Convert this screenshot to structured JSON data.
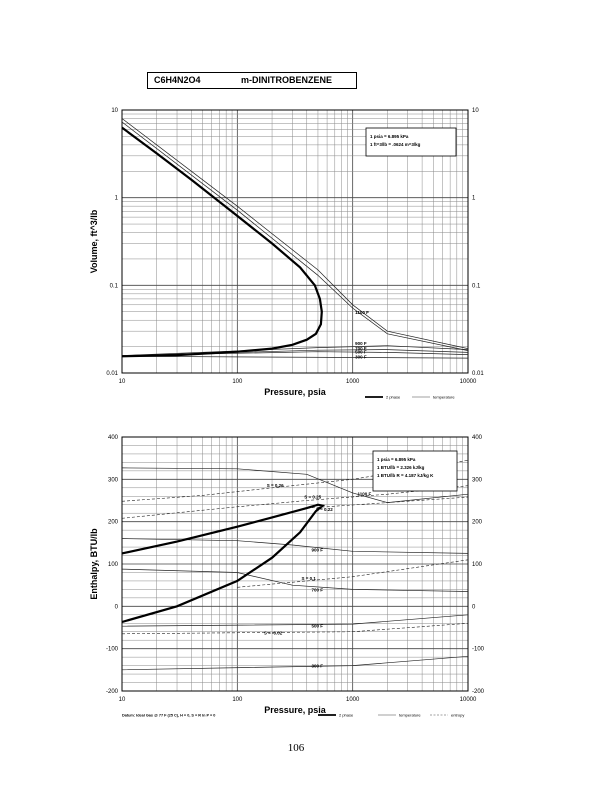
{
  "header": {
    "formula": "C6H4N2O4",
    "compound": "m-DINITROBENZENE"
  },
  "page_number": "106",
  "chart_data": [
    {
      "type": "line",
      "xlabel": "Pressure,  psia",
      "ylabel": "Volume, ft^3/lb",
      "x_scale": "log",
      "y_scale": "log",
      "xlim": [
        10,
        10000
      ],
      "ylim": [
        0.01,
        10
      ],
      "x_ticks": [
        "10",
        "100",
        "1000",
        "10000"
      ],
      "y_ticks": [
        "0.01",
        "0.1",
        "1",
        "10"
      ],
      "conversion_box": [
        "1 psia  =  6.895 kPa",
        "1 ft^3/lb  =  .0624 m^3/kg"
      ],
      "legend": [
        "2 phase",
        "temperature"
      ],
      "grid": true,
      "two_phase": [
        {
          "x": 10,
          "y": 0.0155
        },
        {
          "x": 30,
          "y": 0.016
        },
        {
          "x": 100,
          "y": 0.0175
        },
        {
          "x": 200,
          "y": 0.019
        },
        {
          "x": 300,
          "y": 0.021
        },
        {
          "x": 400,
          "y": 0.024
        },
        {
          "x": 480,
          "y": 0.028
        },
        {
          "x": 530,
          "y": 0.036
        },
        {
          "x": 540,
          "y": 0.05
        },
        {
          "x": 520,
          "y": 0.07
        },
        {
          "x": 470,
          "y": 0.1
        },
        {
          "x": 350,
          "y": 0.16
        },
        {
          "x": 200,
          "y": 0.3
        },
        {
          "x": 100,
          "y": 0.62
        },
        {
          "x": 40,
          "y": 1.6
        },
        {
          "x": 20,
          "y": 3.2
        },
        {
          "x": 10,
          "y": 6.3
        }
      ],
      "isotherms": [
        {
          "label": "300 F",
          "points": [
            {
              "x": 10,
              "y": 0.0155
            },
            {
              "x": 10000,
              "y": 0.0148
            }
          ]
        },
        {
          "label": "500 F",
          "points": [
            {
              "x": 10,
              "y": 0.0158
            },
            {
              "x": 500,
              "y": 0.0175
            },
            {
              "x": 2000,
              "y": 0.0172
            },
            {
              "x": 10000,
              "y": 0.0162
            }
          ]
        },
        {
          "label": "700 F",
          "points": [
            {
              "x": 10,
              "y": 0.0158
            },
            {
              "x": 500,
              "y": 0.0182
            },
            {
              "x": 2000,
              "y": 0.0185
            },
            {
              "x": 10000,
              "y": 0.0172
            }
          ]
        },
        {
          "label": "900 F",
          "points": [
            {
              "x": 10,
              "y": 0.0158
            },
            {
              "x": 500,
              "y": 0.0195
            },
            {
              "x": 2000,
              "y": 0.0205
            },
            {
              "x": 10000,
              "y": 0.0185
            }
          ]
        },
        {
          "label": "1100 F",
          "points": [
            {
              "x": 10,
              "y": 8.0
            },
            {
              "x": 100,
              "y": 0.8
            },
            {
              "x": 500,
              "y": 0.15
            },
            {
              "x": 1000,
              "y": 0.06
            },
            {
              "x": 2000,
              "y": 0.03
            },
            {
              "x": 10000,
              "y": 0.019
            }
          ]
        },
        {
          "label": "",
          "points": [
            {
              "x": 10,
              "y": 7.3
            },
            {
              "x": 100,
              "y": 0.72
            },
            {
              "x": 500,
              "y": 0.13
            },
            {
              "x": 1000,
              "y": 0.055
            },
            {
              "x": 2000,
              "y": 0.028
            },
            {
              "x": 10000,
              "y": 0.018
            }
          ]
        }
      ],
      "isotherm_labels": [
        "1100 F",
        "900 F",
        "700 F",
        "500 F",
        "300 F"
      ]
    },
    {
      "type": "line",
      "xlabel": "Pressure,  psia",
      "ylabel": "Enthalpy, BTU/lb",
      "x_scale": "log",
      "y_scale": "linear",
      "xlim": [
        10,
        10000
      ],
      "ylim": [
        -200,
        400
      ],
      "x_ticks": [
        "10",
        "100",
        "1000",
        "10000"
      ],
      "y_ticks_left": [
        "400",
        "300",
        "200",
        "100",
        "0",
        "-100",
        "-200"
      ],
      "y_ticks_right": [
        "400",
        "300",
        "200",
        "100",
        "0",
        "-100",
        "-200"
      ],
      "conversion_box": [
        "1 psia  =  6.895 kPa",
        "1 BTU/lb  =  2.326 kJ/kg",
        "1 BTU/lb R  =  4.187 kJ/kg K"
      ],
      "legend": [
        "2 phase",
        "temperature",
        "entropy"
      ],
      "datum_note": "Datum: Ideal Gas @ 77 F (25 C),  H = 0,  S = R ln P = 0",
      "grid": true,
      "two_phase": [
        {
          "x": 10,
          "y": -37
        },
        {
          "x": 30,
          "y": 0
        },
        {
          "x": 100,
          "y": 60
        },
        {
          "x": 200,
          "y": 115
        },
        {
          "x": 350,
          "y": 175
        },
        {
          "x": 480,
          "y": 225
        },
        {
          "x": 550,
          "y": 238
        },
        {
          "x": 500,
          "y": 240
        },
        {
          "x": 400,
          "y": 232
        },
        {
          "x": 200,
          "y": 210
        },
        {
          "x": 100,
          "y": 188
        },
        {
          "x": 30,
          "y": 153
        },
        {
          "x": 10,
          "y": 125
        }
      ],
      "isotherms": [
        {
          "label": "1100 F",
          "points": [
            {
              "x": 10,
              "y": 327
            },
            {
              "x": 100,
              "y": 325
            },
            {
              "x": 400,
              "y": 312
            },
            {
              "x": 1000,
              "y": 268
            },
            {
              "x": 2000,
              "y": 245
            },
            {
              "x": 10000,
              "y": 265
            }
          ]
        },
        {
          "label": "900 F",
          "points": [
            {
              "x": 10,
              "y": 160
            },
            {
              "x": 100,
              "y": 155
            },
            {
              "x": 300,
              "y": 145
            },
            {
              "x": 1000,
              "y": 130
            },
            {
              "x": 10000,
              "y": 125
            }
          ]
        },
        {
          "label": "700 F",
          "points": [
            {
              "x": 10,
              "y": 88
            },
            {
              "x": 100,
              "y": 80
            },
            {
              "x": 300,
              "y": 50
            },
            {
              "x": 1000,
              "y": 40
            },
            {
              "x": 10000,
              "y": 35
            }
          ]
        },
        {
          "label": "500 F",
          "points": [
            {
              "x": 10,
              "y": -47
            },
            {
              "x": 1000,
              "y": -42
            },
            {
              "x": 10000,
              "y": -20
            }
          ]
        },
        {
          "label": "300 F",
          "points": [
            {
              "x": 10,
              "y": -150
            },
            {
              "x": 1000,
              "y": -140
            },
            {
              "x": 10000,
              "y": -118
            }
          ]
        }
      ],
      "isentropes": [
        {
          "label": "S = 0.26",
          "points": [
            {
              "x": 10,
              "y": 248
            },
            {
              "x": 50,
              "y": 262
            },
            {
              "x": 200,
              "y": 280
            },
            {
              "x": 1000,
              "y": 300
            },
            {
              "x": 10000,
              "y": 345
            }
          ]
        },
        {
          "label": "S = 0.25",
          "points": [
            {
              "x": 10,
              "y": 208
            },
            {
              "x": 100,
              "y": 235
            },
            {
              "x": 400,
              "y": 250
            },
            {
              "x": 2000,
              "y": 265
            },
            {
              "x": 10000,
              "y": 285
            }
          ]
        },
        {
          "label": "S = 0.22",
          "points": [
            {
              "x": 400,
              "y": 232
            },
            {
              "x": 2000,
              "y": 245
            },
            {
              "x": 10000,
              "y": 258
            }
          ]
        },
        {
          "label": "S = 0.1",
          "points": [
            {
              "x": 100,
              "y": 45
            },
            {
              "x": 1000,
              "y": 70
            },
            {
              "x": 10000,
              "y": 110
            }
          ]
        },
        {
          "label": "S = -0.02",
          "points": [
            {
              "x": 10,
              "y": -65
            },
            {
              "x": 1000,
              "y": -60
            },
            {
              "x": 10000,
              "y": -40
            }
          ]
        }
      ],
      "isotherm_labels": [
        "1100 F",
        "900 F",
        "700 F",
        "500 F",
        "300 F"
      ],
      "isentrope_labels": [
        "S = 0.26",
        "S = 0.25",
        "S = 0.22",
        "S = 0.1",
        "S = -0.02"
      ]
    }
  ]
}
